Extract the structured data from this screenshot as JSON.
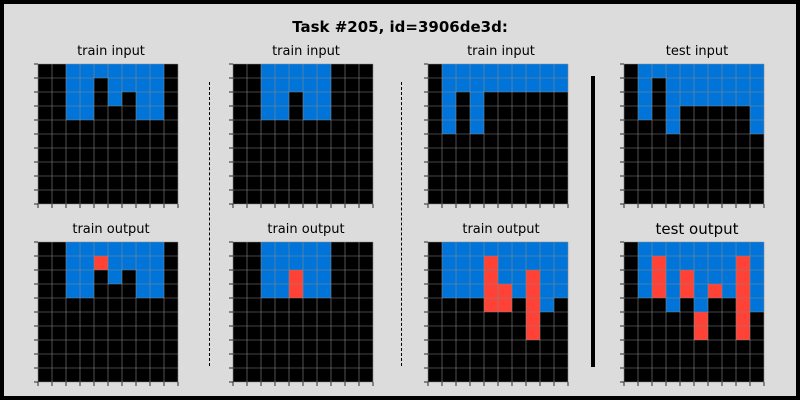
{
  "title": "Task #205, id=3906de3d:",
  "colors": {
    "0": "#000000",
    "1": "#0074d9",
    "2": "#ff4136",
    "grid_line": "#888888",
    "background": "#dcdcdc"
  },
  "panels": [
    {
      "label": "train input",
      "grid": [
        "0011111110",
        "0011011110",
        "0011010110",
        "0011000110",
        "0000000000",
        "0000000000",
        "0000000000",
        "0000000000",
        "0000000000",
        "0000000000"
      ]
    },
    {
      "label": "train output",
      "grid": [
        "0011111110",
        "0011211110",
        "0011010110",
        "0011000110",
        "0000000000",
        "0000000000",
        "0000000000",
        "0000000000",
        "0000000000",
        "0000000000"
      ]
    },
    {
      "label": "train input",
      "grid": [
        "0011111000",
        "0011111000",
        "0011011000",
        "0011011000",
        "0000000000",
        "0000000000",
        "0000000000",
        "0000000000",
        "0000000000",
        "0000000000"
      ]
    },
    {
      "label": "train output",
      "grid": [
        "0011111000",
        "0011111000",
        "0011211000",
        "0011211000",
        "0000000000",
        "0000000000",
        "0000000000",
        "0000000000",
        "0000000000",
        "0000000000"
      ]
    },
    {
      "label": "train input",
      "grid": [
        "0111111111",
        "0111111111",
        "0101000000",
        "0101000000",
        "0101000000",
        "0000000000",
        "0000000000",
        "0000000000",
        "0000000000",
        "0000000000"
      ]
    },
    {
      "label": "train output",
      "grid": [
        "0111111111",
        "0111211111",
        "0111211211",
        "0111221211",
        "0000220210",
        "0000000200",
        "0000000200",
        "0000000000",
        "0000000000",
        "0000000000"
      ]
    },
    {
      "label": "test input",
      "grid": [
        "0111111111",
        "0101111111",
        "0101111111",
        "0101000001",
        "0001000001",
        "0000000000",
        "0000000000",
        "0000000000",
        "0000000000",
        "0000000000"
      ]
    },
    {
      "label": "test output",
      "grid": [
        "0111111111",
        "0121111121",
        "0121211121",
        "0121212121",
        "0001010021",
        "0000020020",
        "0000020020",
        "0000000000",
        "0000000000",
        "0000000000"
      ]
    }
  ]
}
